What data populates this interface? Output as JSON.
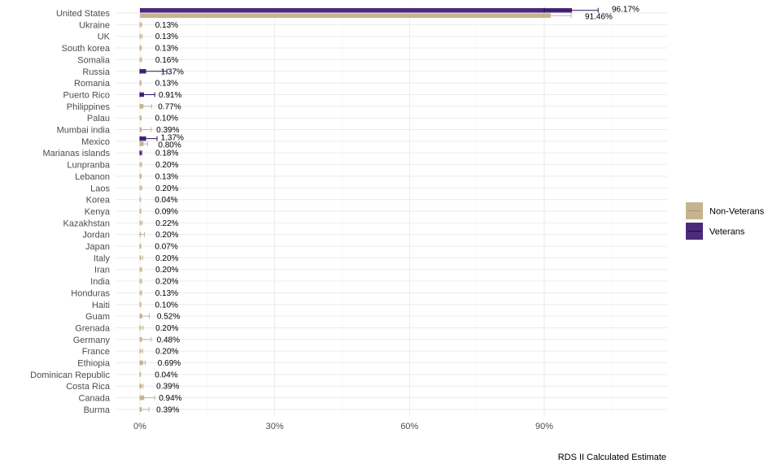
{
  "chart_data": {
    "type": "bar",
    "orientation": "horizontal",
    "title": "",
    "xlabel": "RDS II Calculated Estimate",
    "ylabel": "",
    "xlim": [
      0,
      1.1
    ],
    "xticks": [
      0,
      0.3,
      0.6,
      0.9
    ],
    "xtick_labels": [
      "0%",
      "30%",
      "60%",
      "90%"
    ],
    "grid": true,
    "legend_position": "right",
    "colors": {
      "Non-Veterans": "#c5b48f",
      "Veterans": "#4b2a7b"
    },
    "categories": [
      "United States",
      "Ukraine",
      "UK",
      "South korea",
      "Somalia",
      "Russia",
      "Romania",
      "Puerto Rico",
      "Philippines",
      "Palau",
      "Mumbai india",
      "Mexico",
      "Marianas islands",
      "Lunpranba",
      "Lebanon",
      "Laos",
      "Korea",
      "Kenya",
      "Kazakhstan",
      "Jordan",
      "Japan",
      "Italy",
      "Iran",
      "India",
      "Honduras",
      "Haiti",
      "Guam",
      "Grenada",
      "Germany",
      "France",
      "Ethiopia",
      "Dominican Republic",
      "Costa Rica",
      "Canada",
      "Burma"
    ],
    "series": [
      {
        "name": "Veterans",
        "points": [
          {
            "category": "United States",
            "value": 0.9617,
            "label": "96.17%",
            "err": [
              0.9,
              1.02
            ]
          },
          {
            "category": "Russia",
            "value": 0.0137,
            "label": "1.37%",
            "err": [
              0.0,
              0.06
            ]
          },
          {
            "category": "Puerto Rico",
            "value": 0.0091,
            "label": "0.91%",
            "err": [
              0.0,
              0.033
            ]
          },
          {
            "category": "Mexico",
            "value": 0.0137,
            "label": "1.37%",
            "err": [
              0.0,
              0.038
            ]
          },
          {
            "category": "Marianas islands",
            "value": 0.0018,
            "label": "0.18%",
            "err": [
              0.0,
              0.004
            ]
          }
        ]
      },
      {
        "name": "Non-Veterans",
        "points": [
          {
            "category": "United States",
            "value": 0.9146,
            "label": "91.46%",
            "err": [
              0.865,
              0.96
            ]
          },
          {
            "category": "Ukraine",
            "value": 0.0013,
            "label": "0.13%",
            "err": [
              0.0,
              0.004
            ]
          },
          {
            "category": "UK",
            "value": 0.0013,
            "label": "0.13%",
            "err": [
              0.0,
              0.005
            ]
          },
          {
            "category": "South korea",
            "value": 0.0013,
            "label": "0.13%",
            "err": [
              0.0,
              0.003
            ]
          },
          {
            "category": "Somalia",
            "value": 0.0016,
            "label": "0.16%",
            "err": [
              0.0,
              0.004
            ]
          },
          {
            "category": "Romania",
            "value": 0.0013,
            "label": "0.13%",
            "err": [
              0.0,
              0.003
            ]
          },
          {
            "category": "Philippines",
            "value": 0.0077,
            "label": "0.77%",
            "err": [
              0.0,
              0.026
            ]
          },
          {
            "category": "Palau",
            "value": 0.001,
            "label": "0.10%",
            "err": [
              0.0,
              0.003
            ]
          },
          {
            "category": "Mumbai india",
            "value": 0.0039,
            "label": "0.39%",
            "err": [
              0.0,
              0.025
            ]
          },
          {
            "category": "Mexico",
            "value": 0.008,
            "label": "0.80%",
            "err": [
              0.0,
              0.017
            ]
          },
          {
            "category": "Lunpranba",
            "value": 0.002,
            "label": "0.20%",
            "err": [
              0.0,
              0.004
            ]
          },
          {
            "category": "Lebanon",
            "value": 0.0013,
            "label": "0.13%",
            "err": [
              0.0,
              0.003
            ]
          },
          {
            "category": "Laos",
            "value": 0.002,
            "label": "0.20%",
            "err": [
              0.0,
              0.004
            ]
          },
          {
            "category": "Korea",
            "value": 0.0004,
            "label": "0.04%",
            "err": [
              0.0,
              0.001
            ]
          },
          {
            "category": "Kenya",
            "value": 0.0009,
            "label": "0.09%",
            "err": [
              0.0,
              0.002
            ]
          },
          {
            "category": "Kazakhstan",
            "value": 0.0022,
            "label": "0.22%",
            "err": [
              0.0,
              0.005
            ]
          },
          {
            "category": "Jordan",
            "value": 0.002,
            "label": "0.20%",
            "err": [
              0.0,
              0.01
            ]
          },
          {
            "category": "Japan",
            "value": 0.0007,
            "label": "0.07%",
            "err": [
              0.0,
              0.002
            ]
          },
          {
            "category": "Italy",
            "value": 0.002,
            "label": "0.20%",
            "err": [
              0.0,
              0.006
            ]
          },
          {
            "category": "Iran",
            "value": 0.002,
            "label": "0.20%",
            "err": [
              0.0,
              0.004
            ]
          },
          {
            "category": "India",
            "value": 0.002,
            "label": "0.20%",
            "err": [
              0.0,
              0.004
            ]
          },
          {
            "category": "Honduras",
            "value": 0.0013,
            "label": "0.13%",
            "err": [
              0.0,
              0.004
            ]
          },
          {
            "category": "Haiti",
            "value": 0.001,
            "label": "0.10%",
            "err": [
              0.0,
              0.002
            ]
          },
          {
            "category": "Guam",
            "value": 0.0052,
            "label": "0.52%",
            "err": [
              0.0,
              0.021
            ]
          },
          {
            "category": "Grenada",
            "value": 0.002,
            "label": "0.20%",
            "err": [
              0.0,
              0.007
            ]
          },
          {
            "category": "Germany",
            "value": 0.0048,
            "label": "0.48%",
            "err": [
              0.0,
              0.025
            ]
          },
          {
            "category": "France",
            "value": 0.002,
            "label": "0.20%",
            "err": [
              0.0,
              0.006
            ]
          },
          {
            "category": "Ethiopia",
            "value": 0.0069,
            "label": "0.69%",
            "err": [
              0.0,
              0.012
            ]
          },
          {
            "category": "Dominican Republic",
            "value": 0.0004,
            "label": "0.04%",
            "err": [
              0.0,
              0.001
            ]
          },
          {
            "category": "Costa Rica",
            "value": 0.0039,
            "label": "0.39%",
            "err": [
              0.0,
              0.007
            ]
          },
          {
            "category": "Canada",
            "value": 0.0094,
            "label": "0.94%",
            "err": [
              0.0,
              0.033
            ]
          },
          {
            "category": "Burma",
            "value": 0.0039,
            "label": "0.39%",
            "err": [
              0.0,
              0.02
            ]
          }
        ]
      }
    ],
    "legend": [
      {
        "name": "Non-Veterans"
      },
      {
        "name": "Veterans"
      }
    ]
  }
}
